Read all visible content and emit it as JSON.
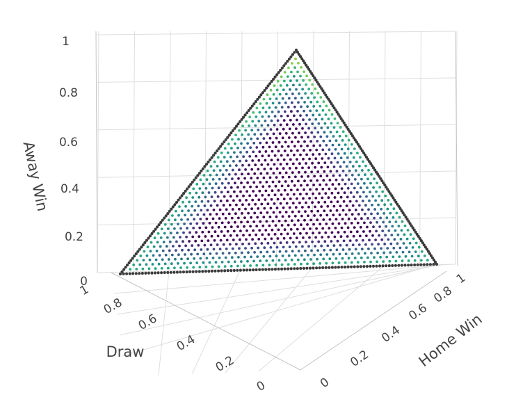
{
  "chart_data": {
    "type": "scatter",
    "plot_kind": "3d-scatter",
    "surface": "simplex home_win + draw + away_win = 1",
    "grid_step": 0.01,
    "point_value_colormap": "viridis",
    "point_value_range": [
      0,
      1
    ],
    "colormap_stops": [
      "#440154",
      "#482878",
      "#3e4989",
      "#31688e",
      "#26828e",
      "#1f9e89",
      "#35b779",
      "#6ece58",
      "#b5de2b",
      "#fde725"
    ],
    "edge_point_color": "#3a3a3a",
    "grid": true,
    "axes": {
      "x": {
        "label": "Home Win",
        "range": [
          0,
          1
        ],
        "tick_labels": [
          "0",
          "0.2",
          "0.4",
          "0.6",
          "0.8",
          "1"
        ]
      },
      "y": {
        "label": "Draw",
        "range": [
          0,
          1
        ],
        "tick_labels": [
          "0",
          "0.2",
          "0.4",
          "0.6",
          "0.8",
          "1"
        ]
      },
      "z": {
        "label": "Away Win",
        "range": [
          0,
          1
        ],
        "tick_labels": [
          "0",
          "0.2",
          "0.4",
          "0.6",
          "0.8",
          "1"
        ]
      }
    },
    "vertices": [
      {
        "home_win": 1,
        "draw": 0,
        "away_win": 0
      },
      {
        "home_win": 0,
        "draw": 1,
        "away_win": 0
      },
      {
        "home_win": 0,
        "draw": 0,
        "away_win": 1
      }
    ]
  }
}
